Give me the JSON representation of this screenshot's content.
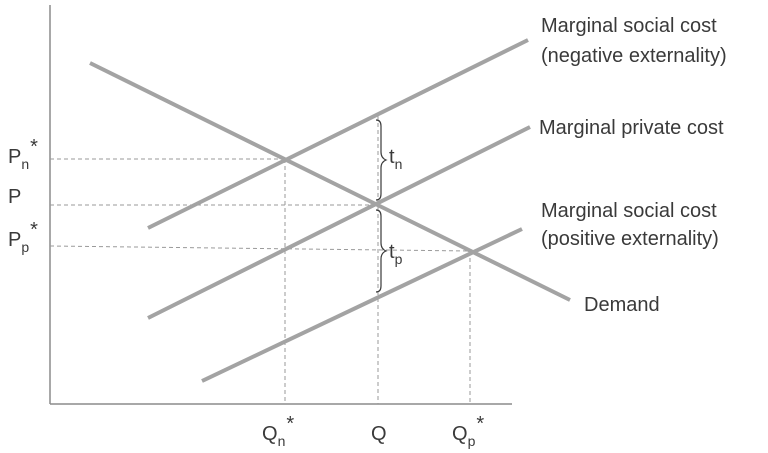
{
  "diagram": {
    "curves": {
      "msc_negative": {
        "line1": "Marginal social cost",
        "line2": "(negative externality)"
      },
      "mpc": {
        "label": "Marginal private cost"
      },
      "msc_positive": {
        "line1": "Marginal social cost",
        "line2": "(positive externality)"
      },
      "demand": {
        "label": "Demand"
      }
    },
    "y_labels": {
      "pn": {
        "base": "P",
        "sub": "n",
        "sup": "*"
      },
      "p": {
        "base": "P"
      },
      "pp": {
        "base": "P",
        "sub": "p",
        "sup": "*"
      }
    },
    "x_labels": {
      "qn": {
        "base": "Q",
        "sub": "n",
        "sup": "*"
      },
      "q": {
        "base": "Q"
      },
      "qp": {
        "base": "Q",
        "sub": "p",
        "sup": "*"
      }
    },
    "taxes": {
      "tn": {
        "base": "t",
        "sub": "n"
      },
      "tp": {
        "base": "t",
        "sub": "p"
      }
    },
    "colors": {
      "curve": "#a3a3a3",
      "guide": "#9a9a9a",
      "text": "#3a3a3a",
      "axis": "#8c8c8c"
    }
  }
}
